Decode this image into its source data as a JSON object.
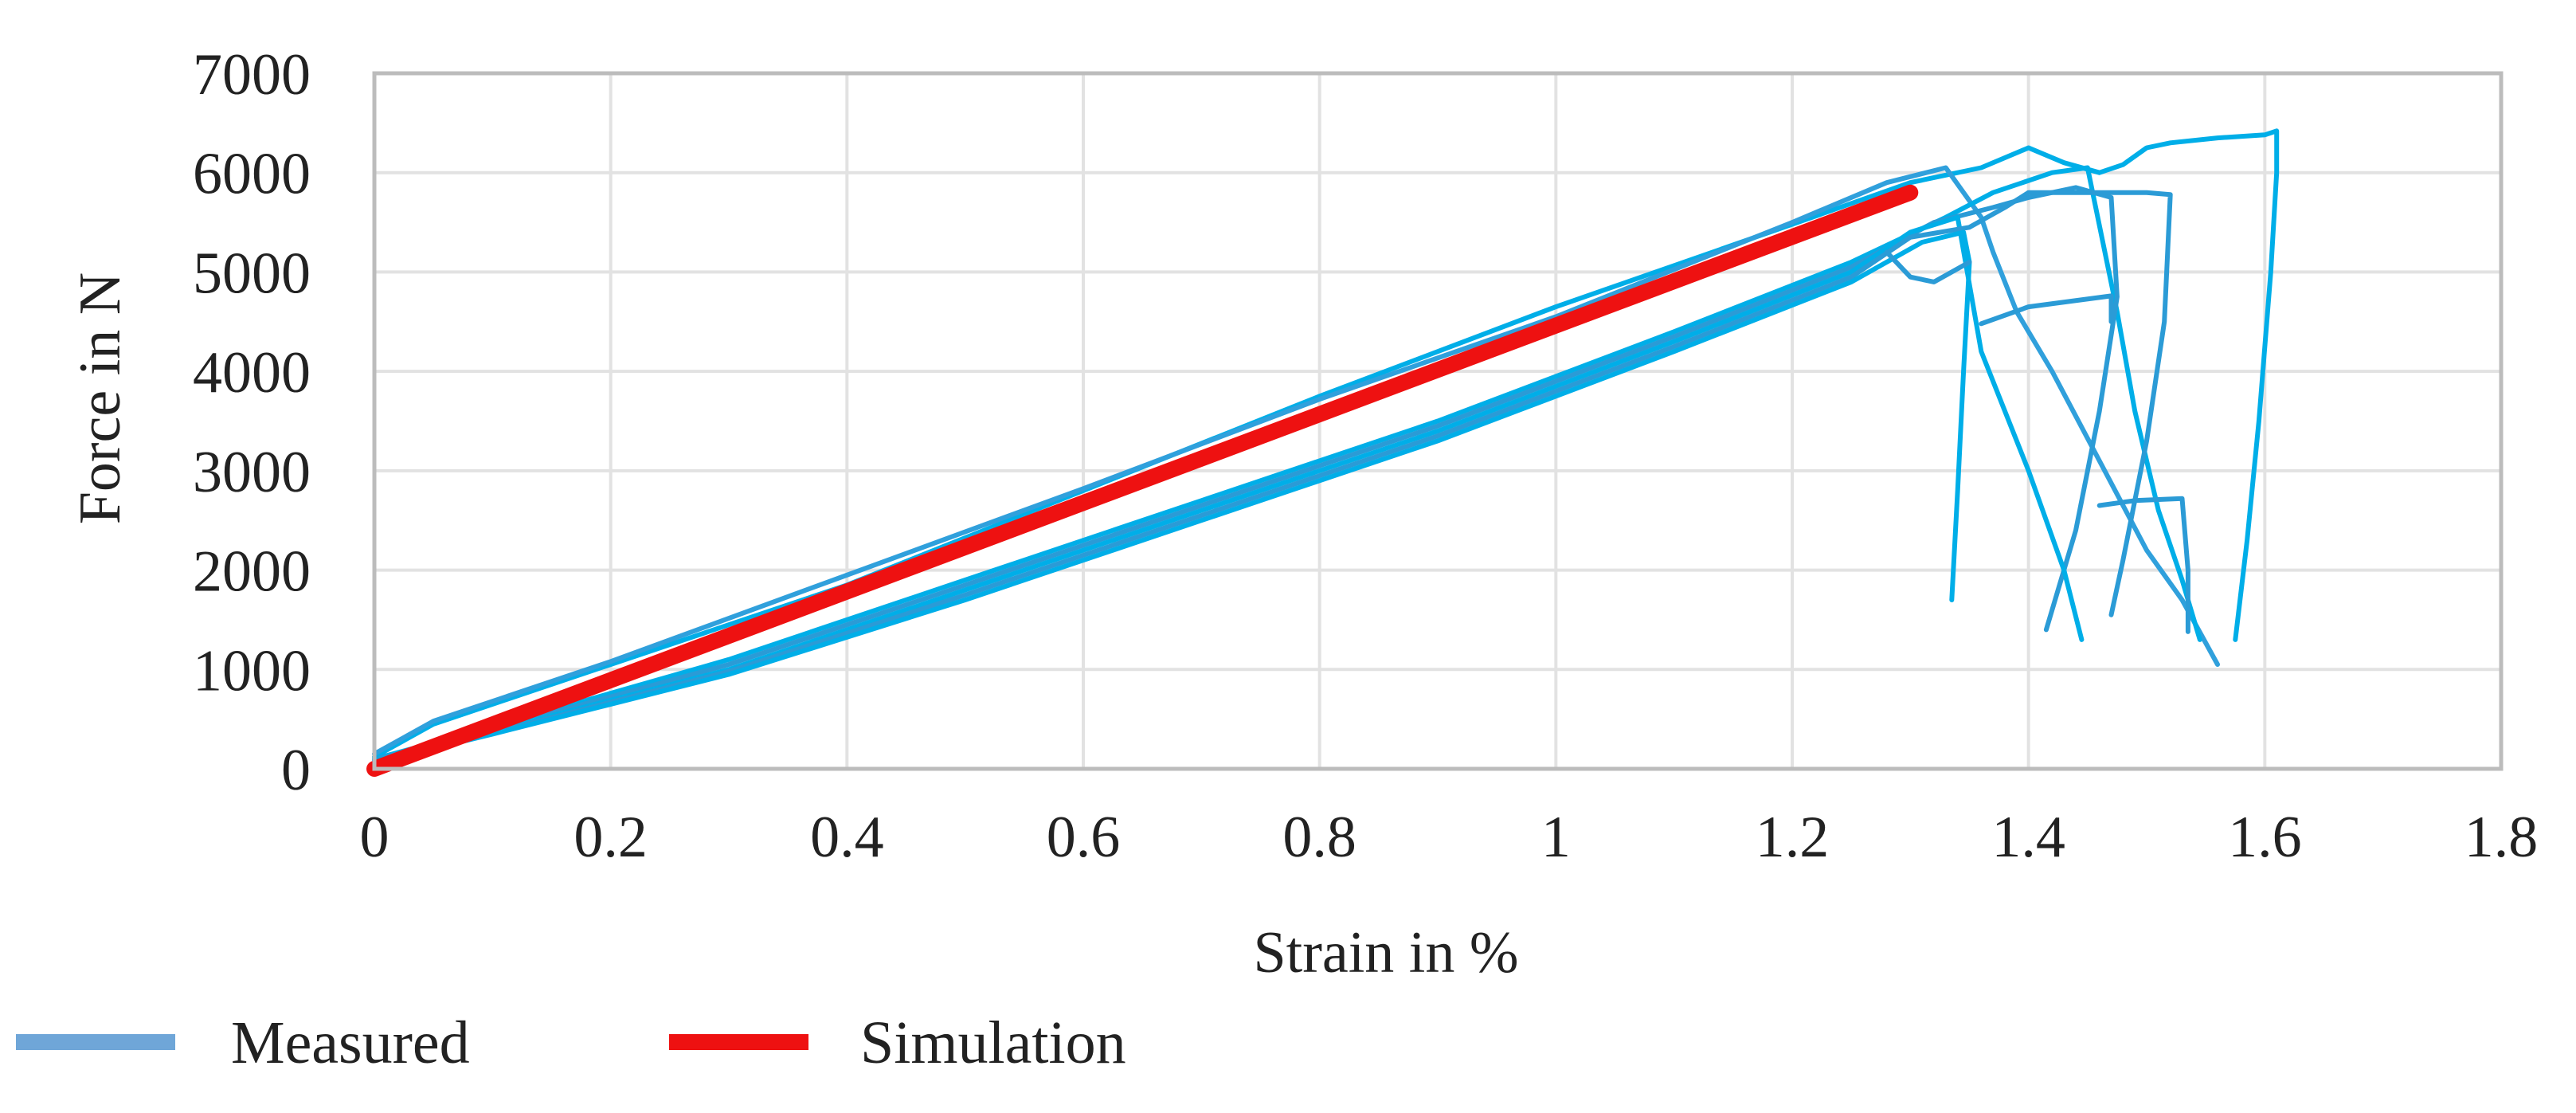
{
  "chart_data": {
    "type": "line",
    "title": "",
    "xlabel": "Strain in %",
    "ylabel": "Force in N",
    "xlim": [
      0,
      1.8
    ],
    "ylim": [
      0,
      7000
    ],
    "x_ticks": [
      0,
      0.2,
      0.4,
      0.6,
      0.8,
      1,
      1.2,
      1.4,
      1.6,
      1.8
    ],
    "x_tick_labels": [
      "0",
      "0.2",
      "0.4",
      "0.6",
      "0.8",
      "1",
      "1.2",
      "1.4",
      "1.6",
      "1.8"
    ],
    "y_ticks": [
      0,
      1000,
      2000,
      3000,
      4000,
      5000,
      6000,
      7000
    ],
    "y_tick_labels": [
      "0",
      "1000",
      "2000",
      "3000",
      "4000",
      "5000",
      "6000",
      "7000"
    ],
    "grid": true,
    "legend_position": "bottom-left",
    "legend": [
      {
        "label": "Measured",
        "color": "#6fa6d8"
      },
      {
        "label": "Simulation",
        "color": "#ee1111"
      }
    ],
    "series": [
      {
        "name": "Measured 1",
        "group": "Measured",
        "color": "#00aee8",
        "x": [
          0,
          0.05,
          0.2,
          0.4,
          0.6,
          0.8,
          1.0,
          1.2,
          1.3,
          1.36,
          1.4,
          1.43,
          1.46,
          1.48,
          1.5,
          1.52,
          1.56,
          1.6,
          1.61,
          1.61,
          1.605,
          1.595,
          1.585,
          1.575
        ],
        "y": [
          120,
          450,
          1050,
          1850,
          2800,
          3750,
          4650,
          5480,
          5900,
          6050,
          6250,
          6100,
          6000,
          6080,
          6250,
          6300,
          6350,
          6380,
          6420,
          6000,
          5000,
          3500,
          2300,
          1300
        ]
      },
      {
        "name": "Measured 2",
        "group": "Measured",
        "color": "#30a0dc",
        "x": [
          0,
          0.05,
          0.2,
          0.4,
          0.6,
          0.8,
          1.0,
          1.2,
          1.28,
          1.33,
          1.36,
          1.37,
          1.39,
          1.42,
          1.46,
          1.5,
          1.53,
          1.56
        ],
        "y": [
          150,
          480,
          1080,
          1950,
          2820,
          3720,
          4550,
          5500,
          5900,
          6050,
          5550,
          5200,
          4600,
          4000,
          3100,
          2200,
          1700,
          1050
        ]
      },
      {
        "name": "Measured 3",
        "group": "Measured",
        "color": "#00aee8",
        "x": [
          0,
          0.1,
          0.3,
          0.5,
          0.7,
          0.9,
          1.1,
          1.25,
          1.33,
          1.37,
          1.42,
          1.45,
          1.475,
          1.49,
          1.51,
          1.53,
          1.545
        ],
        "y": [
          100,
          420,
          1100,
          1900,
          2700,
          3500,
          4400,
          5100,
          5550,
          5800,
          6000,
          6050,
          4600,
          3600,
          2600,
          1900,
          1300
        ]
      },
      {
        "name": "Measured 4",
        "group": "Measured",
        "color": "#2b9bd6",
        "x": [
          0,
          0.1,
          0.3,
          0.5,
          0.7,
          0.9,
          1.1,
          1.25,
          1.32,
          1.37,
          1.4,
          1.44,
          1.47,
          1.475,
          1.46,
          1.44,
          1.415
        ],
        "y": [
          90,
          400,
          1050,
          1850,
          2650,
          3450,
          4350,
          5050,
          5500,
          5650,
          5750,
          5850,
          5750,
          4750,
          3600,
          2400,
          1400
        ]
      },
      {
        "name": "Measured 5",
        "group": "Measured",
        "color": "#00aee8",
        "x": [
          0,
          0.1,
          0.3,
          0.5,
          0.7,
          0.9,
          1.1,
          1.25,
          1.3,
          1.34,
          1.36,
          1.4,
          1.43,
          1.445
        ],
        "y": [
          80,
          380,
          1000,
          1800,
          2600,
          3400,
          4300,
          5000,
          5400,
          5550,
          4200,
          3000,
          2000,
          1300
        ]
      },
      {
        "name": "Measured 6",
        "group": "Measured",
        "color": "#2b9bd6",
        "x": [
          0,
          0.1,
          0.3,
          0.5,
          0.7,
          0.9,
          1.1,
          1.25,
          1.3,
          1.35,
          1.38,
          1.4,
          1.5,
          1.52,
          1.515,
          1.5,
          1.48,
          1.47
        ],
        "y": [
          70,
          360,
          980,
          1750,
          2550,
          3350,
          4250,
          4950,
          5350,
          5450,
          5650,
          5800,
          5800,
          5780,
          4500,
          3300,
          2100,
          1550
        ]
      },
      {
        "name": "Measured 7",
        "group": "Measured",
        "color": "#00aee8",
        "x": [
          0,
          0.1,
          0.3,
          0.5,
          0.7,
          0.9,
          1.1,
          1.25,
          1.31,
          1.345,
          1.35,
          1.345,
          1.34,
          1.335
        ],
        "y": [
          60,
          350,
          950,
          1700,
          2500,
          3300,
          4200,
          4900,
          5300,
          5400,
          5100,
          4000,
          2800,
          1700
        ]
      },
      {
        "name": "Measured 8",
        "group": "Measured",
        "color": "#2b9bd6",
        "x": [
          1.36,
          1.4,
          1.47,
          1.47
        ],
        "y": [
          4480,
          4650,
          4760,
          4500
        ]
      },
      {
        "name": "Measured 9",
        "group": "Measured",
        "color": "#2b9bd6",
        "x": [
          1.46,
          1.49,
          1.53,
          1.535,
          1.535
        ],
        "y": [
          2650,
          2700,
          2720,
          2000,
          1380
        ]
      },
      {
        "name": "Measured 10",
        "group": "Measured",
        "color": "#2b9bd6",
        "x": [
          1.28,
          1.3,
          1.32,
          1.35
        ],
        "y": [
          5200,
          4950,
          4900,
          5100
        ]
      },
      {
        "name": "Simulation",
        "group": "Simulation",
        "color": "#ee1111",
        "x": [
          0,
          1.3
        ],
        "y": [
          0,
          5800
        ]
      }
    ]
  }
}
